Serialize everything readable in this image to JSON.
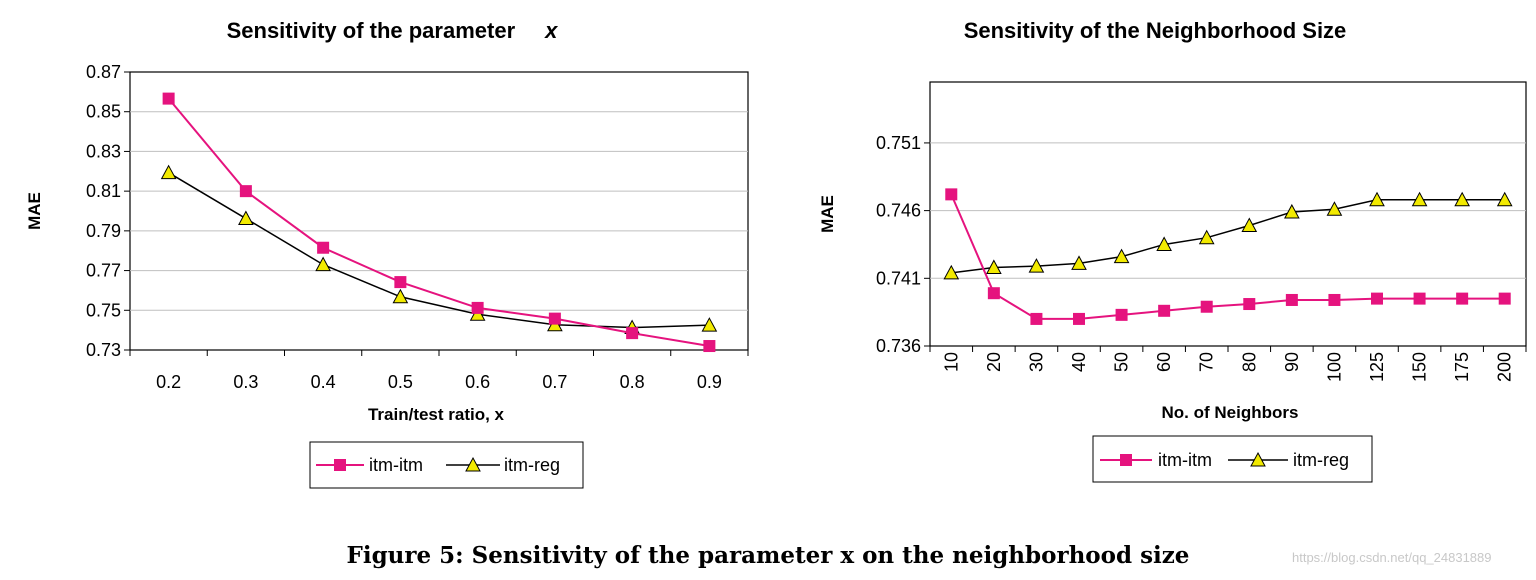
{
  "colors": {
    "series1": "#e5137e",
    "series2": "#000000",
    "triangle_fill": "#f2ea00",
    "grid": "#bfbfbf"
  },
  "chart_data": [
    {
      "type": "line",
      "title": "Sensitivity of the parameter",
      "title_var": "x",
      "xlabel": "Train/test ratio, x",
      "ylabel": "MAE",
      "categories": [
        "0.2",
        "0.3",
        "0.4",
        "0.5",
        "0.6",
        "0.7",
        "0.8",
        "0.9"
      ],
      "yticks": [
        "0.73",
        "0.75",
        "0.77",
        "0.79",
        "0.81",
        "0.83",
        "0.85",
        "0.87"
      ],
      "ylim": [
        0.73,
        0.87
      ],
      "grid": true,
      "series": [
        {
          "name": "itm-itm",
          "marker": "square",
          "values": [
            0.8566,
            0.81,
            0.7815,
            0.7642,
            0.7512,
            0.7458,
            0.7385,
            0.732
          ]
        },
        {
          "name": "itm-reg",
          "marker": "triangle",
          "values": [
            0.8193,
            0.7962,
            0.773,
            0.7568,
            0.748,
            0.7427,
            0.7413,
            0.7425
          ]
        }
      ],
      "legend": "bottom"
    },
    {
      "type": "line",
      "title": "Sensitivity of the Neighborhood Size",
      "xlabel": "No. of Neighbors",
      "ylabel": "MAE",
      "categories": [
        "10",
        "20",
        "30",
        "40",
        "50",
        "60",
        "70",
        "80",
        "90",
        "100",
        "125",
        "150",
        "175",
        "200"
      ],
      "yticks": [
        "0.736",
        "0.741",
        "0.746",
        "0.751"
      ],
      "ylim": [
        0.736,
        0.7555
      ],
      "grid": true,
      "series": [
        {
          "name": "itm-itm",
          "marker": "square",
          "values": [
            0.7472,
            0.7399,
            0.738,
            0.738,
            0.7383,
            0.7386,
            0.7389,
            0.7391,
            0.7394,
            0.7394,
            0.7395,
            0.7395,
            0.7395,
            0.7395
          ]
        },
        {
          "name": "itm-reg",
          "marker": "triangle",
          "values": [
            0.7414,
            0.7418,
            0.7419,
            0.7421,
            0.7426,
            0.7435,
            0.744,
            0.7449,
            0.7459,
            0.7461,
            0.7468,
            0.7468,
            0.7468,
            0.7468
          ]
        }
      ],
      "legend": "bottom"
    }
  ],
  "caption": "Figure 5: Sensitivity of the parameter x on the neighborhood size",
  "watermark": "https://blog.csdn.net/qq_24831889"
}
